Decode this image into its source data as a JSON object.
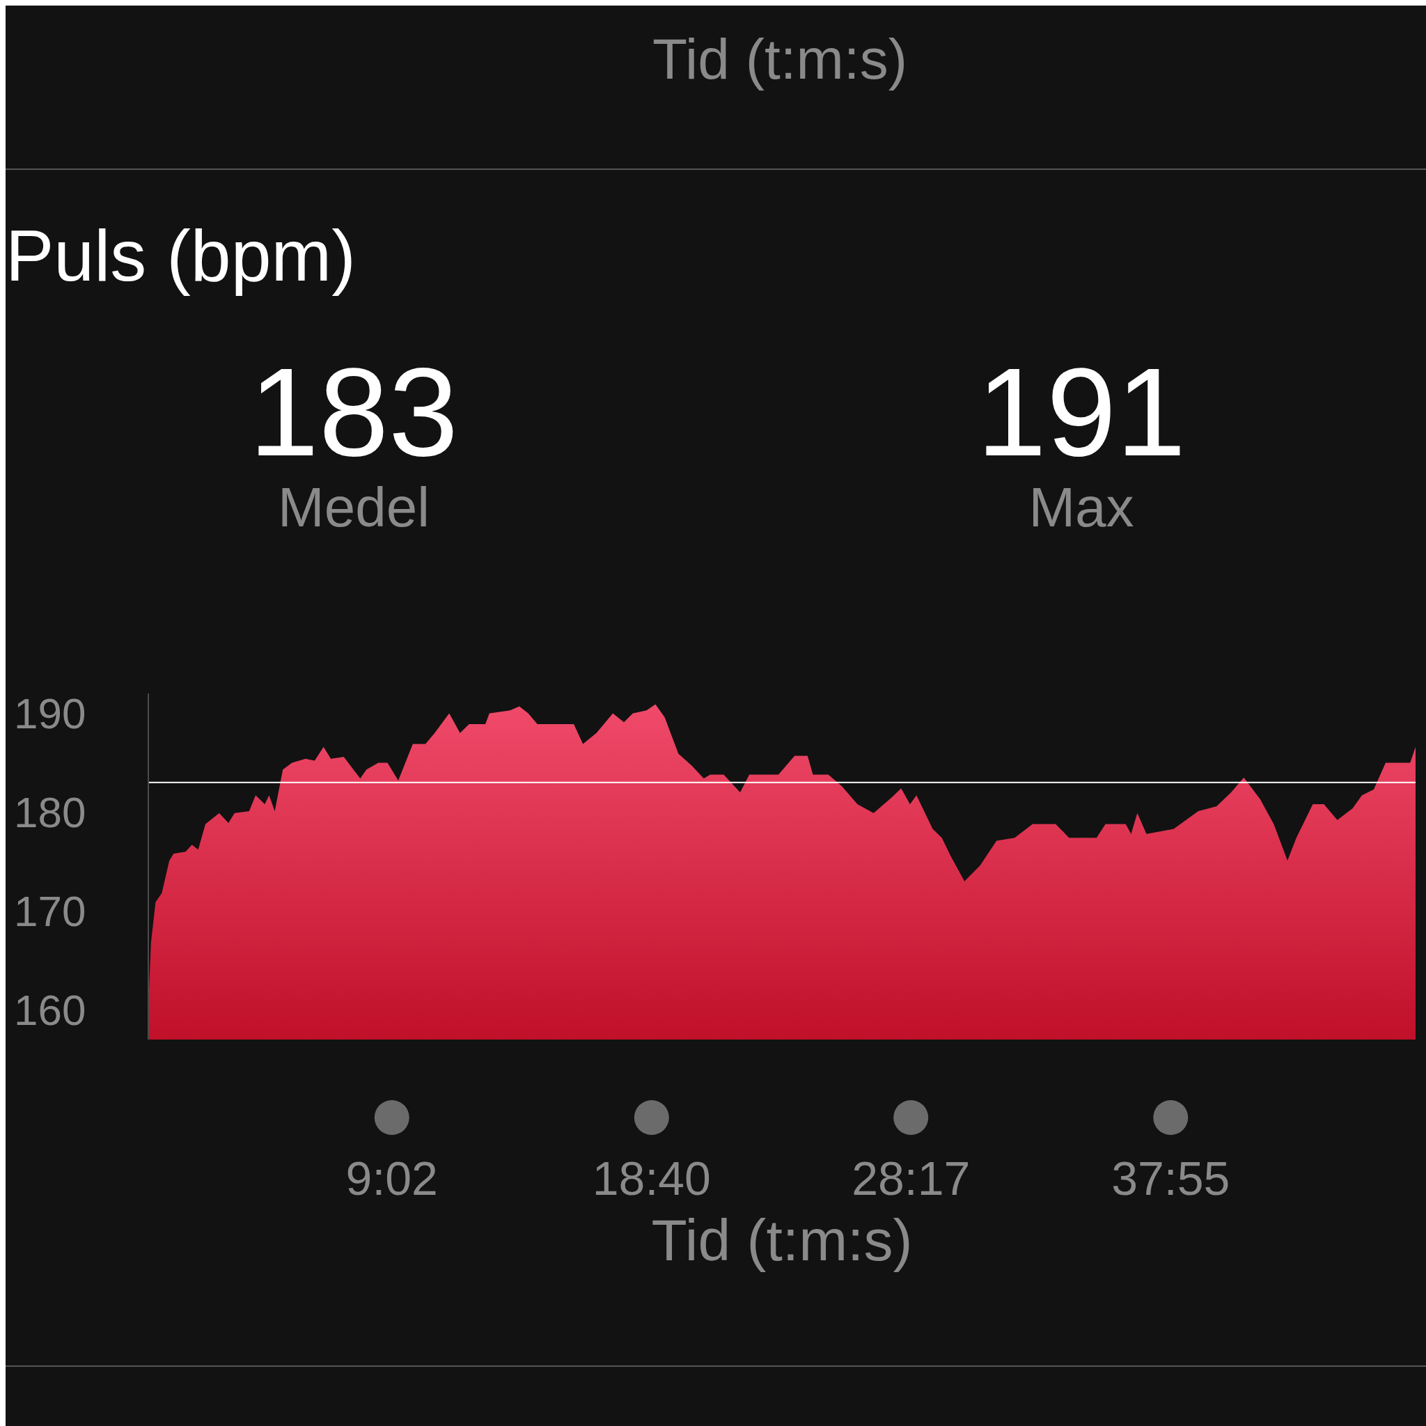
{
  "chart_data": {
    "type": "area",
    "title": "Puls (bpm)",
    "xlabel": "Tid (t:m:s)",
    "annotations": [
      "Tid (t:m:s)",
      "183",
      "Medel",
      "191",
      "Max"
    ],
    "x": [
      0,
      0.1,
      0.27,
      0.5,
      0.78,
      0.94,
      1.38,
      1.62,
      1.85,
      2.12,
      2.63,
      2.97,
      3.2,
      3.74,
      3.98,
      4.32,
      4.48,
      4.69,
      4.99,
      5.33,
      5.83,
      6.17,
      6.5,
      6.77,
      7.25,
      7.86,
      8.09,
      8.53,
      8.87,
      9.27,
      9.81,
      10.28,
      10.62,
      11.16,
      11.56,
      11.9,
      12.5,
      12.65,
      13.42,
      13.76,
      14.09,
      14.43,
      15.78,
      16.12,
      16.62,
      17.23,
      17.64,
      17.97,
      18.48,
      18.81,
      19.15,
      19.66,
      20.16,
      20.6,
      20.84,
      21.34,
      21.95,
      22.29,
      23.37,
      23.97,
      24.45,
      24.65,
      25.22,
      25.73,
      26.3,
      26.9,
      27.58,
      27.92,
      28.25,
      28.49,
      29.09,
      29.43,
      29.77,
      30.27,
      30.85,
      31.46,
      32.13,
      32.8,
      33.65,
      34.15,
      35.17,
      35.5,
      36.25,
      36.45,
      36.68,
      37.02,
      38.03,
      38.94,
      39.62,
      40.16,
      40.63,
      41.24,
      41.74,
      42.25,
      42.58,
      43.19,
      43.6,
      44.1,
      44.67,
      45.01,
      45.45,
      45.89,
      46.8,
      47
    ],
    "series": [
      {
        "color": "#f04a6a",
        "values": [
          160.3,
          166.8,
          170.9,
          171.8,
          175.1,
          175.8,
          176,
          176.7,
          176.2,
          178.8,
          179.9,
          178.9,
          179.9,
          180.1,
          181.7,
          180.8,
          181.7,
          180.1,
          184.3,
          185,
          185.4,
          185.2,
          186.6,
          185.4,
          185.6,
          183.4,
          184.3,
          185,
          185,
          183.2,
          186.9,
          186.9,
          188,
          190,
          188,
          188.9,
          188.9,
          190,
          190.3,
          190.7,
          190,
          188.9,
          188.9,
          186.9,
          188,
          190,
          189.1,
          190,
          190.3,
          190.9,
          189.6,
          185.9,
          184.7,
          183.4,
          183.8,
          183.8,
          182,
          183.8,
          183.8,
          185.7,
          185.7,
          183.8,
          183.8,
          182.6,
          180.8,
          179.9,
          181.5,
          182.4,
          180.8,
          181.7,
          178.3,
          177.4,
          175.5,
          173,
          174.6,
          177.1,
          177.4,
          178.8,
          178.8,
          177.4,
          177.4,
          178.8,
          178.8,
          177.8,
          179.9,
          177.8,
          178.3,
          180.1,
          180.6,
          182,
          183.5,
          181.3,
          178.8,
          175.1,
          177.4,
          180.8,
          180.8,
          179.2,
          180.4,
          181.7,
          182.3,
          185,
          185,
          186.6
        ]
      }
    ],
    "xlim": [
      0,
      47
    ],
    "xticks": [
      {
        "value": 9.033,
        "label": "9:02"
      },
      {
        "value": 18.667,
        "label": "18:40"
      },
      {
        "value": 28.283,
        "label": "28:17"
      },
      {
        "value": 37.917,
        "label": "37:55"
      }
    ],
    "ylim": [
      157,
      192
    ],
    "yticks": [
      160,
      170,
      180,
      190
    ],
    "ref_lines": [
      {
        "axis": "y",
        "value": 183,
        "color": "#ffffff"
      }
    ],
    "grid": false,
    "legend": false
  }
}
